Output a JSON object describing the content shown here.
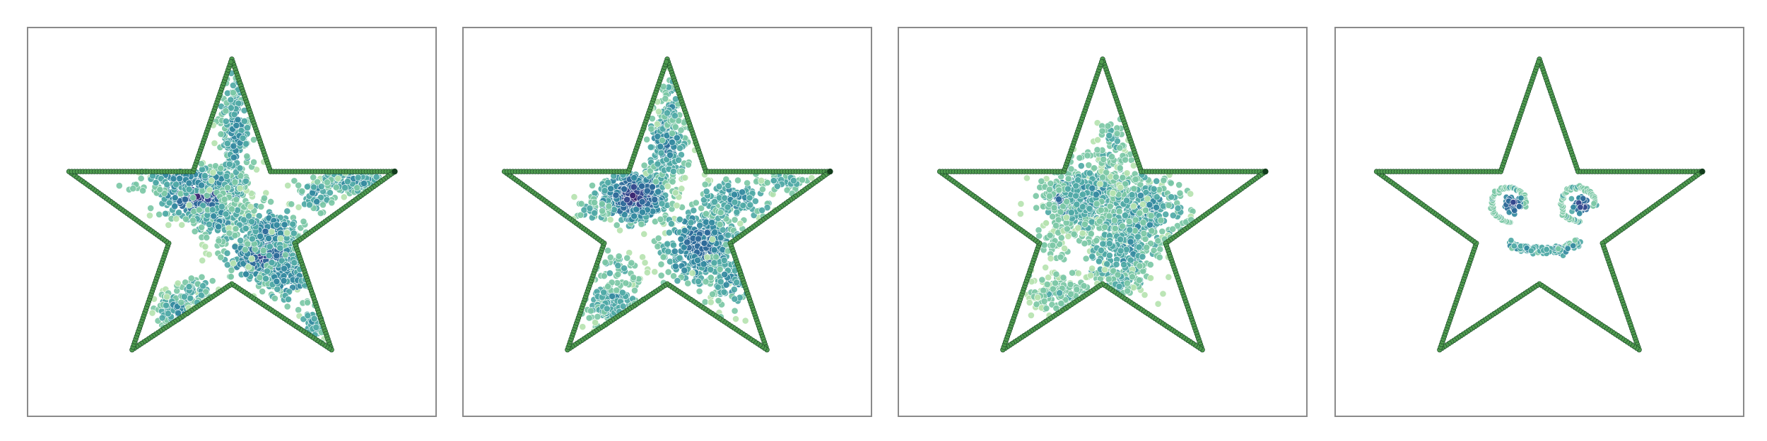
{
  "chart_data": [
    {
      "type": "scatter",
      "xlim": [
        0,
        100
      ],
      "ylim": [
        0,
        100
      ],
      "grid": false,
      "axes_ticks": false,
      "colors": {
        "outline_dark": "#1d4e2a",
        "outline_fill": "#4f9a4f",
        "colormap": [
          "#b6e3b0",
          "#7cc8a6",
          "#4fa9a6",
          "#3389a0",
          "#2e6a99",
          "#34488d",
          "#3b2470"
        ]
      },
      "series": [
        {
          "kind": "outline",
          "shape": "star",
          "vertices": [
            [
              50,
              8
            ],
            [
              59.5,
              37
            ],
            [
              90,
              37
            ],
            [
              65.5,
              55.5
            ],
            [
              74.5,
              83
            ],
            [
              50,
              66
            ],
            [
              25.5,
              83
            ],
            [
              34.5,
              55.5
            ],
            [
              10,
              37
            ],
            [
              40.5,
              37
            ]
          ]
        },
        {
          "kind": "clusters",
          "clusters": [
            {
              "cx": 42,
              "cy": 43.5,
              "sx": 5,
              "sy": 3,
              "n": 340,
              "dark": 0.95
            },
            {
              "cx": 40,
              "cy": 39,
              "sx": 7.5,
              "sy": 2,
              "n": 170,
              "dark": 0.6
            },
            {
              "cx": 51,
              "cy": 27,
              "sx": 2.2,
              "sy": 9,
              "n": 210,
              "dark": 0.5
            },
            {
              "cx": 47,
              "cy": 49.5,
              "sx": 3.5,
              "sy": 3,
              "n": 100,
              "dark": 0.5
            },
            {
              "cx": 58,
              "cy": 59,
              "sx": 5,
              "sy": 3.5,
              "n": 340,
              "dark": 0.85
            },
            {
              "cx": 59,
              "cy": 52,
              "sx": 4,
              "sy": 3,
              "n": 150,
              "dark": 0.65
            },
            {
              "cx": 64,
              "cy": 64,
              "sx": 4,
              "sy": 4,
              "n": 100,
              "dark": 0.55
            },
            {
              "cx": 70,
              "cy": 77,
              "sx": 1.6,
              "sy": 3,
              "n": 50,
              "dark": 0.45
            },
            {
              "cx": 81,
              "cy": 39.5,
              "sx": 4.5,
              "sy": 1.6,
              "n": 130,
              "dark": 0.5
            },
            {
              "cx": 71,
              "cy": 43,
              "sx": 2.5,
              "sy": 2.5,
              "n": 60,
              "dark": 0.5
            },
            {
              "cx": 36.5,
              "cy": 73,
              "sx": 2.5,
              "sy": 2.5,
              "n": 120,
              "dark": 0.55
            },
            {
              "cx": 41,
              "cy": 68,
              "sx": 2.5,
              "sy": 2,
              "n": 50,
              "dark": 0.45
            }
          ]
        }
      ]
    },
    {
      "type": "scatter",
      "xlim": [
        0,
        100
      ],
      "ylim": [
        0,
        100
      ],
      "grid": false,
      "axes_ticks": false,
      "series": [
        {
          "kind": "outline",
          "shape": "star",
          "vertices": [
            [
              50,
              8
            ],
            [
              59.5,
              37
            ],
            [
              90,
              37
            ],
            [
              65.5,
              55.5
            ],
            [
              74.5,
              83
            ],
            [
              50,
              66
            ],
            [
              25.5,
              83
            ],
            [
              34.5,
              55.5
            ],
            [
              10,
              37
            ],
            [
              40.5,
              37
            ]
          ]
        },
        {
          "kind": "clusters",
          "clusters": [
            {
              "cx": 42,
              "cy": 43.5,
              "sx": 4.5,
              "sy": 3.5,
              "n": 380,
              "dark": 0.95
            },
            {
              "cx": 50,
              "cy": 30,
              "sx": 2.5,
              "sy": 5,
              "n": 210,
              "dark": 0.6
            },
            {
              "cx": 51,
              "cy": 20,
              "sx": 1.5,
              "sy": 4,
              "n": 50,
              "dark": 0.4
            },
            {
              "cx": 58,
              "cy": 56,
              "sx": 5,
              "sy": 5,
              "n": 340,
              "dark": 0.75
            },
            {
              "cx": 67,
              "cy": 44,
              "sx": 5,
              "sy": 3,
              "n": 140,
              "dark": 0.5
            },
            {
              "cx": 79,
              "cy": 40,
              "sx": 3,
              "sy": 1.5,
              "n": 50,
              "dark": 0.4
            },
            {
              "cx": 66,
              "cy": 65,
              "sx": 3,
              "sy": 4,
              "n": 90,
              "dark": 0.5
            },
            {
              "cx": 37,
              "cy": 71,
              "sx": 3.5,
              "sy": 3,
              "n": 140,
              "dark": 0.45
            },
            {
              "cx": 38,
              "cy": 62,
              "sx": 3,
              "sy": 3,
              "n": 40,
              "dark": 0.3
            },
            {
              "cx": 32,
              "cy": 47,
              "sx": 2.5,
              "sy": 2,
              "n": 30,
              "dark": 0.35
            }
          ]
        }
      ]
    },
    {
      "type": "scatter",
      "xlim": [
        0,
        100
      ],
      "ylim": [
        0,
        100
      ],
      "grid": false,
      "axes_ticks": false,
      "series": [
        {
          "kind": "outline",
          "shape": "star",
          "vertices": [
            [
              50,
              8
            ],
            [
              59.5,
              37
            ],
            [
              90,
              37
            ],
            [
              65.5,
              55.5
            ],
            [
              74.5,
              83
            ],
            [
              50,
              66
            ],
            [
              25.5,
              83
            ],
            [
              34.5,
              55.5
            ],
            [
              10,
              37
            ],
            [
              40.5,
              37
            ]
          ]
        },
        {
          "kind": "clusters",
          "clusters": [
            {
              "cx": 42,
              "cy": 44,
              "sx": 3,
              "sy": 3,
              "n": 220,
              "dark": 0.95
            },
            {
              "cx": 47,
              "cy": 43,
              "sx": 6,
              "sy": 5.5,
              "n": 360,
              "dark": 0.45
            },
            {
              "cx": 60,
              "cy": 47,
              "sx": 5.5,
              "sy": 5.5,
              "n": 300,
              "dark": 0.5
            },
            {
              "cx": 55,
              "cy": 58,
              "sx": 5,
              "sy": 5,
              "n": 220,
              "dark": 0.45
            },
            {
              "cx": 52,
              "cy": 31,
              "sx": 2.5,
              "sy": 4,
              "n": 60,
              "dark": 0.3
            },
            {
              "cx": 40,
              "cy": 69,
              "sx": 4.5,
              "sy": 3,
              "n": 140,
              "dark": 0.25
            },
            {
              "cx": 54,
              "cy": 66,
              "sx": 2.5,
              "sy": 2,
              "n": 40,
              "dark": 0.35
            },
            {
              "cx": 38,
              "cy": 55,
              "sx": 2.5,
              "sy": 3,
              "n": 40,
              "dark": 0.2
            }
          ]
        }
      ]
    },
    {
      "type": "scatter",
      "xlim": [
        0,
        100
      ],
      "ylim": [
        0,
        100
      ],
      "grid": false,
      "axes_ticks": false,
      "series": [
        {
          "kind": "outline",
          "shape": "star",
          "vertices": [
            [
              50,
              8
            ],
            [
              59.5,
              37
            ],
            [
              90,
              37
            ],
            [
              65.5,
              55.5
            ],
            [
              74.5,
              83
            ],
            [
              50,
              66
            ],
            [
              25.5,
              83
            ],
            [
              34.5,
              55.5
            ],
            [
              10,
              37
            ],
            [
              40.5,
              37
            ]
          ]
        },
        {
          "kind": "smiley",
          "eyes": [
            {
              "cx": 42.5,
              "cy": 45.5,
              "ring_r": 4.2,
              "core_r": 1.7
            },
            {
              "cx": 59.5,
              "cy": 45.5,
              "ring_r": 4.2,
              "core_r": 1.7
            }
          ],
          "mouth": {
            "cx": 51,
            "cy": 54.5,
            "rx": 9,
            "ry": 5
          }
        }
      ]
    }
  ]
}
